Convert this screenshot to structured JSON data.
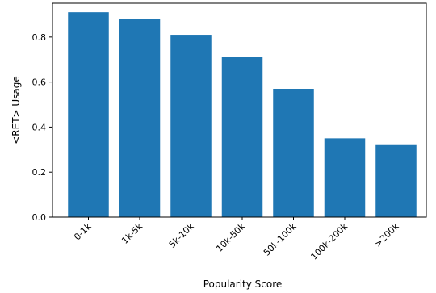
{
  "chart_data": {
    "type": "bar",
    "title": "",
    "xlabel": "Popularity Score",
    "ylabel": "<RET> Usage",
    "categories": [
      "0-1k",
      "1k-5k",
      "5k-10k",
      "10k-50k",
      "50k-100k",
      "100k-200k",
      ">200k"
    ],
    "values": [
      0.91,
      0.88,
      0.81,
      0.71,
      0.57,
      0.35,
      0.32
    ],
    "ylim": [
      0,
      0.95
    ],
    "yticks": [
      "0.0",
      "0.2",
      "0.4",
      "0.6",
      "0.8"
    ],
    "grid": false,
    "legend": "none",
    "bar_color": "#1f77b4"
  }
}
